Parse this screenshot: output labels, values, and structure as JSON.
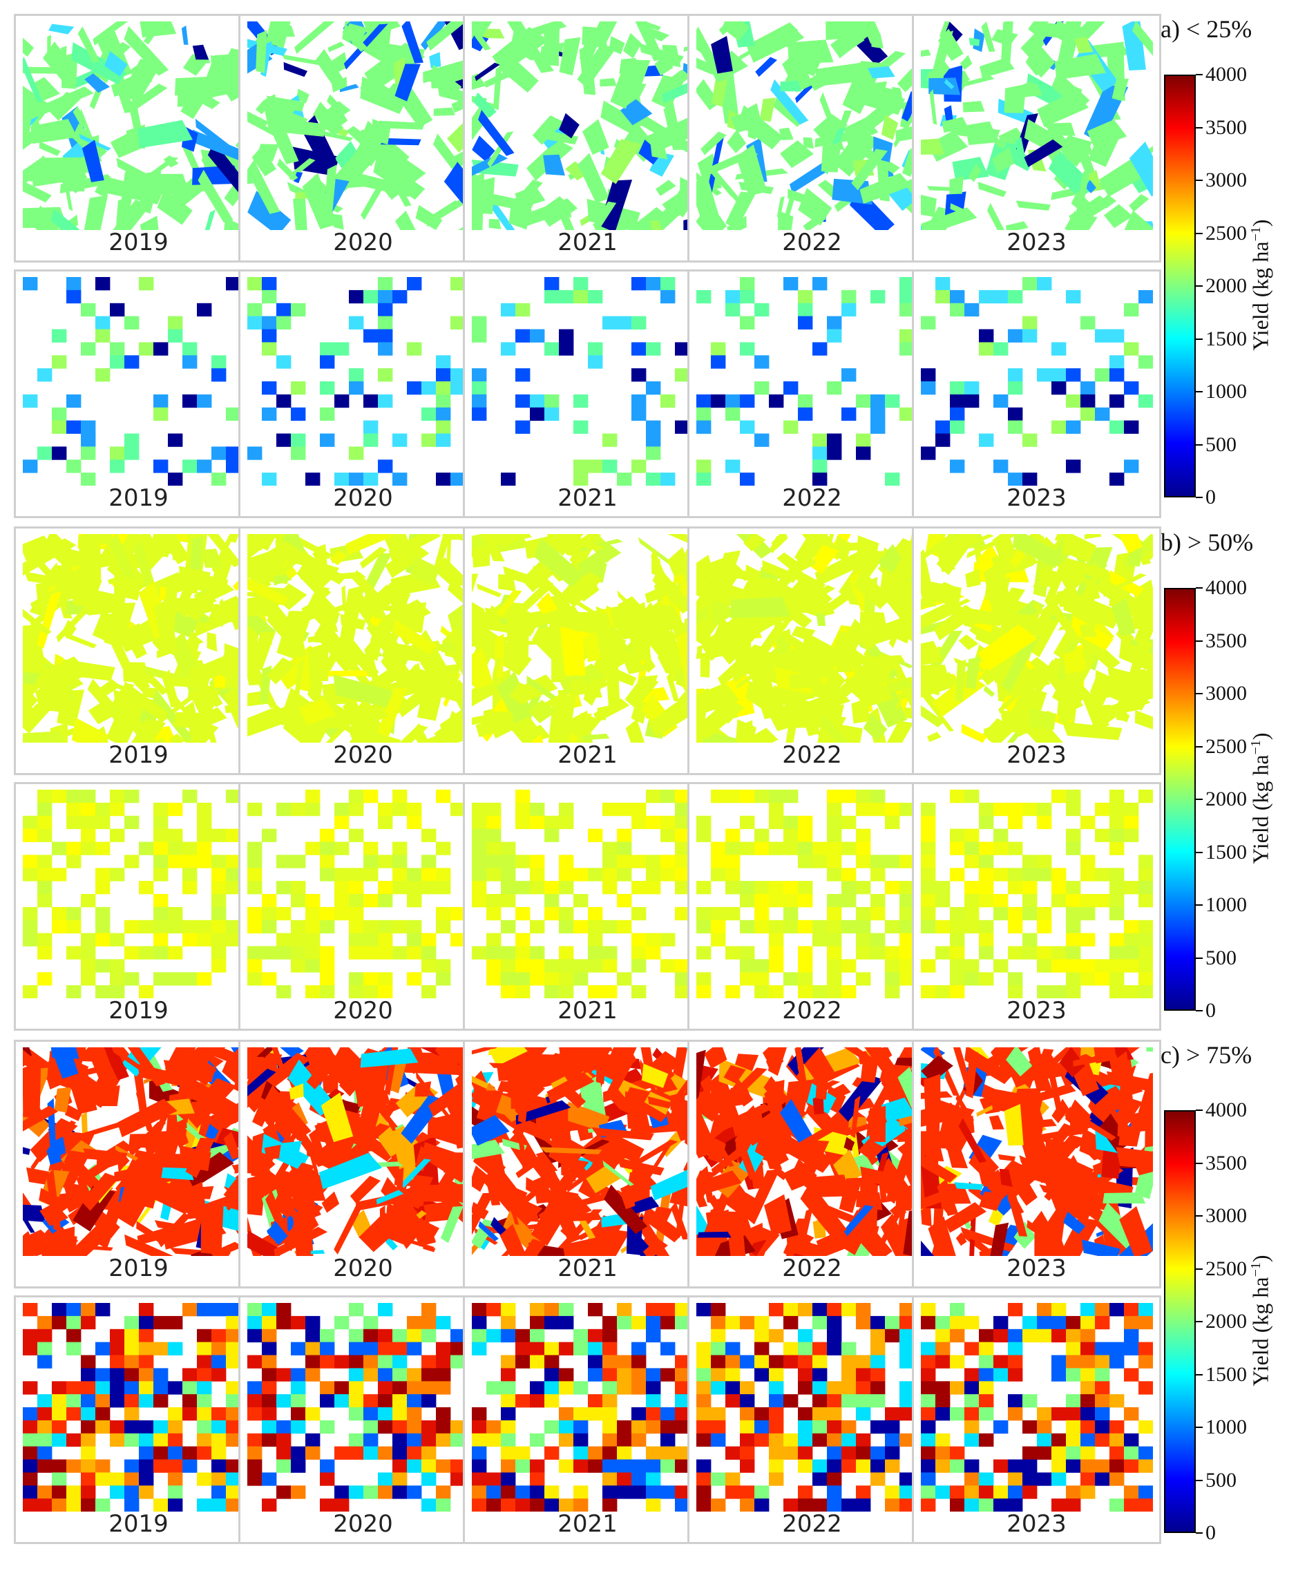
{
  "years": [
    "2019",
    "2020",
    "2021",
    "2022",
    "2023"
  ],
  "groups": [
    {
      "title": "(a) < 25%",
      "theme": "low",
      "colors": [
        "#7fff7f",
        "#9fff5f",
        "#5fffa0",
        "#3fe0ff",
        "#1fa0ff",
        "#0050ff",
        "#00008f"
      ]
    },
    {
      "title": "(b) > 50%",
      "theme": "mid",
      "colors": [
        "#e0ff20",
        "#d8ff2a",
        "#f0ff10",
        "#ccff3a",
        "#ffff00"
      ]
    },
    {
      "title": "(c) > 75%",
      "theme": "high",
      "colors": [
        "#ff3000",
        "#e01000",
        "#a00000",
        "#ff8000",
        "#ffb000",
        "#ffee00",
        "#80ff80",
        "#00e0ff",
        "#0060ff",
        "#0000a0"
      ]
    }
  ],
  "colorbar": {
    "label": "Yield (kg ha",
    "label_sup": "−1",
    "label_end": ")",
    "ticks": [
      "4000",
      "3500",
      "3000",
      "2500",
      "2000",
      "1500",
      "1000",
      "500",
      "0"
    ]
  }
}
